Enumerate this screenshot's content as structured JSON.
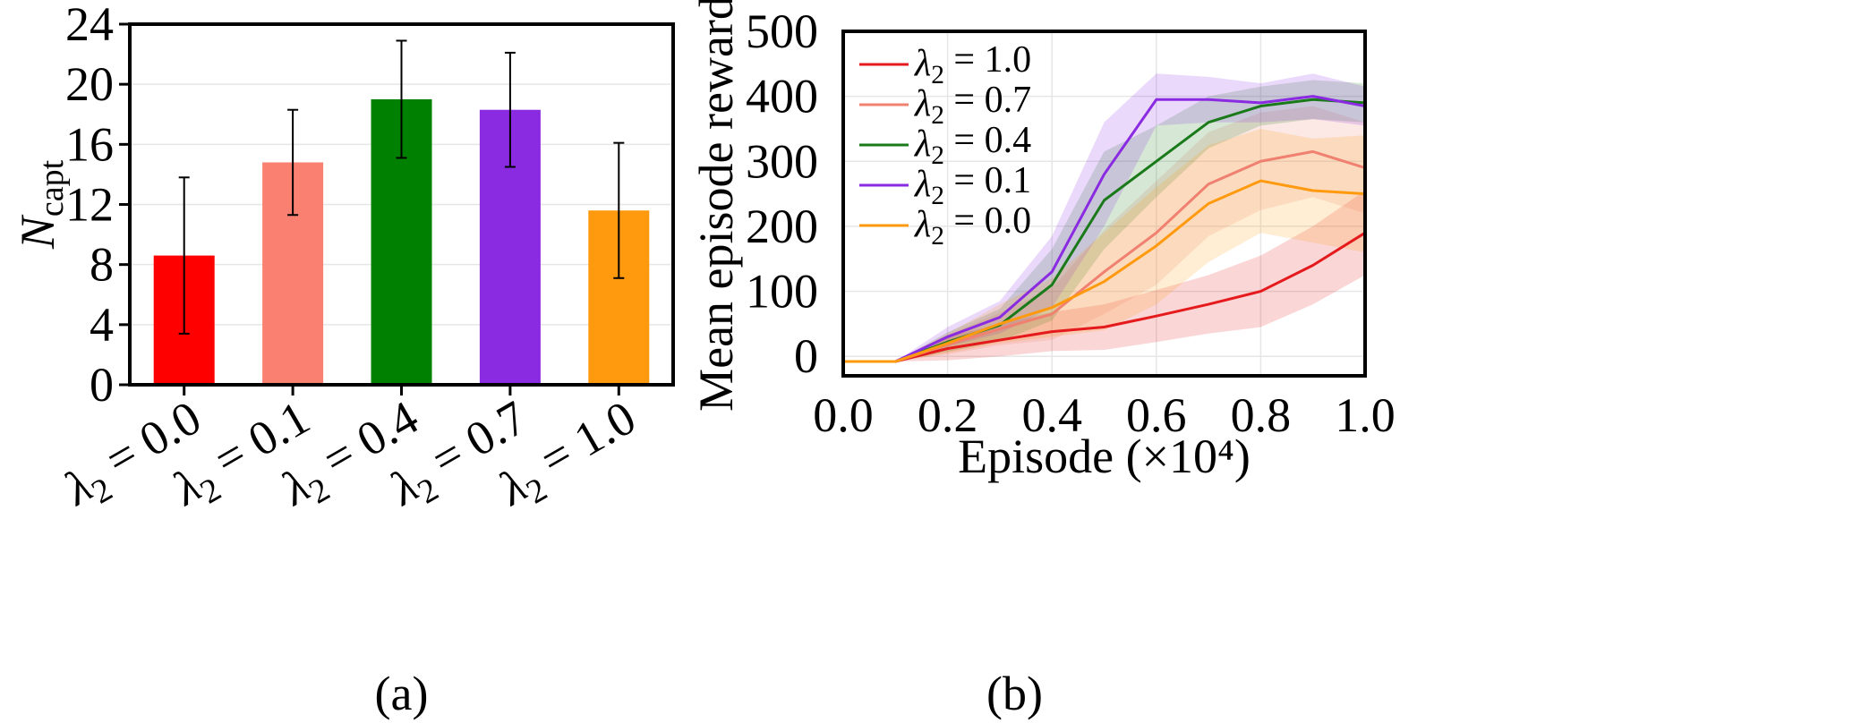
{
  "chart_data": [
    {
      "type": "bar",
      "panel_label": "(a)",
      "ylabel": "N",
      "ylabel_sub": "capt",
      "xlabel": "",
      "ylim": [
        0,
        24
      ],
      "yticks": [
        "0",
        "4",
        "8",
        "12",
        "16",
        "20",
        "24"
      ],
      "grid": true,
      "categories": [
        {
          "sym": "λ",
          "sub": "2",
          "rest": " = 0.0"
        },
        {
          "sym": "λ",
          "sub": "2",
          "rest": " = 0.1"
        },
        {
          "sym": "λ",
          "sub": "2",
          "rest": " = 0.4"
        },
        {
          "sym": "λ",
          "sub": "2",
          "rest": " = 0.7"
        },
        {
          "sym": "λ",
          "sub": "2",
          "rest": " = 1.0"
        }
      ],
      "values": [
        8.6,
        14.8,
        19.0,
        18.3,
        11.6
      ],
      "errors": [
        5.2,
        3.5,
        3.9,
        3.8,
        4.5
      ],
      "colors": [
        "#ff0000",
        "#fa8072",
        "#008000",
        "#8a2be2",
        "#ff9a0e"
      ]
    },
    {
      "type": "line",
      "panel_label": "(b)",
      "xlabel": "Episode (×10⁴)",
      "ylabel": "Mean episode reward",
      "xlim": [
        0,
        1.0
      ],
      "ylim": [
        -30,
        500
      ],
      "xticks": [
        "0.0",
        "0.2",
        "0.4",
        "0.6",
        "0.8",
        "1.0"
      ],
      "yticks": [
        "0",
        "100",
        "200",
        "300",
        "400",
        "500"
      ],
      "grid": true,
      "legend_position": "top-left",
      "series": [
        {
          "name": {
            "sym": "λ",
            "sub": "2",
            "rest": " = 1.0"
          },
          "color": "#e41a1c",
          "x": [
            0,
            0.1,
            0.2,
            0.3,
            0.4,
            0.5,
            0.6,
            0.7,
            0.8,
            0.9,
            1.0
          ],
          "y": [
            -8,
            -8,
            12,
            25,
            38,
            45,
            62,
            80,
            100,
            140,
            190
          ],
          "band": [
            0,
            0,
            18,
            25,
            30,
            35,
            40,
            45,
            55,
            60,
            65
          ]
        },
        {
          "name": {
            "sym": "λ",
            "sub": "2",
            "rest": " = 0.7"
          },
          "color": "#f08070",
          "x": [
            0,
            0.1,
            0.2,
            0.3,
            0.4,
            0.5,
            0.6,
            0.7,
            0.8,
            0.9,
            1.0
          ],
          "y": [
            -8,
            -8,
            18,
            42,
            65,
            130,
            190,
            265,
            300,
            315,
            290
          ],
          "band": [
            0,
            0,
            15,
            25,
            40,
            65,
            80,
            80,
            75,
            70,
            70
          ]
        },
        {
          "name": {
            "sym": "λ",
            "sub": "2",
            "rest": " = 0.4"
          },
          "color": "#1a7a1a",
          "x": [
            0,
            0.1,
            0.2,
            0.3,
            0.4,
            0.5,
            0.6,
            0.7,
            0.8,
            0.9,
            1.0
          ],
          "y": [
            -8,
            -8,
            22,
            48,
            110,
            240,
            300,
            360,
            385,
            395,
            390
          ],
          "band": [
            0,
            0,
            15,
            25,
            55,
            75,
            55,
            40,
            30,
            30,
            30
          ]
        },
        {
          "name": {
            "sym": "λ",
            "sub": "2",
            "rest": " = 0.1"
          },
          "color": "#8a2be2",
          "x": [
            0,
            0.1,
            0.2,
            0.3,
            0.4,
            0.5,
            0.6,
            0.7,
            0.8,
            0.9,
            1.0
          ],
          "y": [
            -8,
            -8,
            30,
            60,
            130,
            280,
            395,
            395,
            390,
            400,
            385
          ],
          "band": [
            0,
            0,
            15,
            25,
            55,
            80,
            40,
            35,
            30,
            35,
            30
          ]
        },
        {
          "name": {
            "sym": "λ",
            "sub": "2",
            "rest": " = 0.0"
          },
          "color": "#ff9a0e",
          "x": [
            0,
            0.1,
            0.2,
            0.3,
            0.4,
            0.5,
            0.6,
            0.7,
            0.8,
            0.9,
            1.0
          ],
          "y": [
            -8,
            -8,
            20,
            50,
            75,
            115,
            170,
            235,
            270,
            255,
            250
          ],
          "band": [
            0,
            0,
            15,
            30,
            45,
            75,
            90,
            90,
            80,
            80,
            90
          ]
        }
      ]
    }
  ]
}
